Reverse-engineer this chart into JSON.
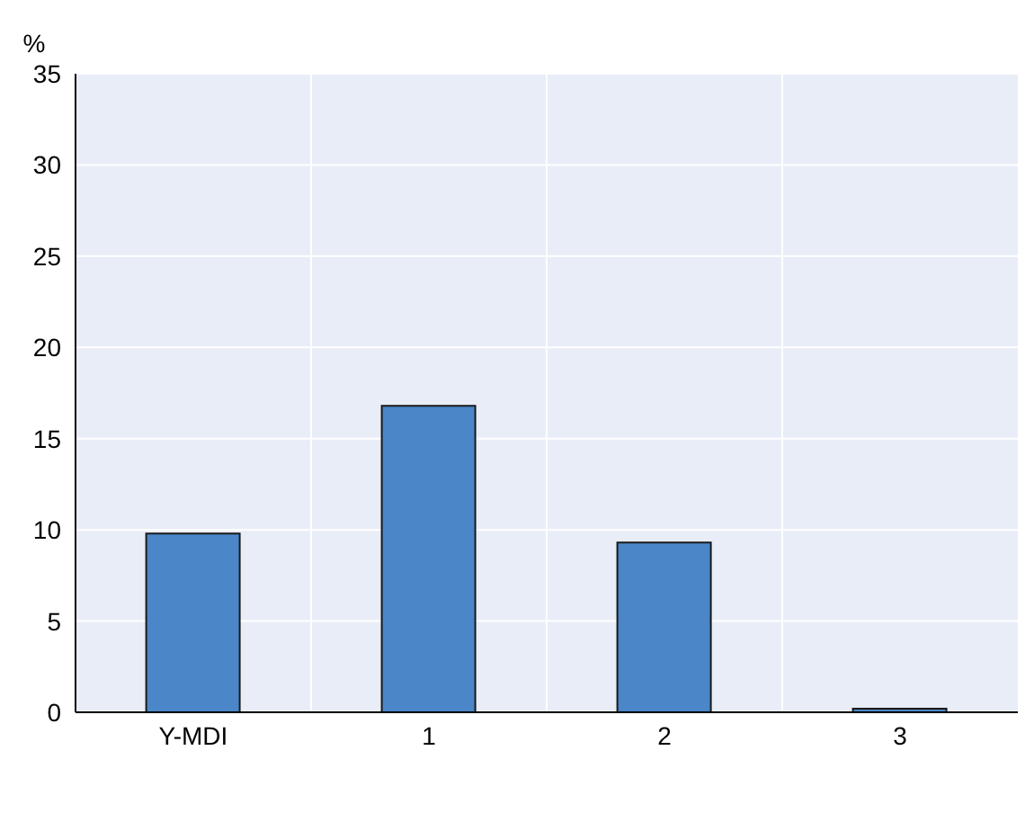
{
  "chart_data": {
    "type": "bar",
    "ylabel": "%",
    "categories": [
      "Y-MDI",
      "1",
      "2",
      "3"
    ],
    "values": [
      9.8,
      16.8,
      9.3,
      0.2
    ],
    "color": "#4a86c8",
    "ylim": [
      0,
      35
    ],
    "yticks": [
      0,
      5,
      10,
      15,
      20,
      25,
      30,
      35
    ],
    "grid": true
  }
}
